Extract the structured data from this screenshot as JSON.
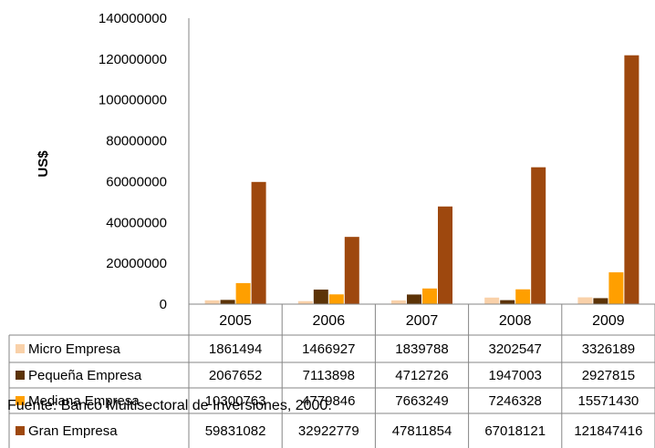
{
  "chart_data": {
    "type": "bar",
    "title": "",
    "xlabel": "",
    "ylabel": "US$",
    "ylim": [
      0,
      140000000
    ],
    "yticks": [
      0,
      20000000,
      40000000,
      60000000,
      80000000,
      100000000,
      120000000,
      140000000
    ],
    "ytick_labels": [
      "0",
      "20000000",
      "40000000",
      "60000000",
      "80000000",
      "100000000",
      "120000000",
      "140000000"
    ],
    "categories": [
      "2005",
      "2006",
      "2007",
      "2008",
      "2009"
    ],
    "series": [
      {
        "name": "Micro Empresa",
        "color": "#F9D1A9",
        "values": [
          1861494,
          1466927,
          1839788,
          3202547,
          3326189
        ],
        "labels": [
          "1861494",
          "1466927",
          "1839788",
          "3202547",
          "3326189"
        ]
      },
      {
        "name": "Pequeña Empresa",
        "color": "#5C3307",
        "values": [
          2067652,
          7113898,
          4712726,
          1947003,
          2927815
        ],
        "labels": [
          "2067652",
          "7113898",
          "4712726",
          "1947003",
          "2927815"
        ]
      },
      {
        "name": "Mediana Empresa",
        "color": "#FF9F00",
        "values": [
          10300763,
          4779846,
          7663249,
          7246328,
          15571430
        ],
        "labels": [
          "10300763",
          "4779846",
          "7663249",
          "7246328",
          "15571430"
        ]
      },
      {
        "name": "Gran Empresa",
        "color": "#9E480E",
        "values": [
          59831082,
          32922779,
          47811854,
          67018121,
          121847416
        ],
        "labels": [
          "59831082",
          "32922779",
          "47811854",
          "67018121",
          "121847416"
        ]
      }
    ],
    "legend": "table-below",
    "grid": false
  },
  "source": "Fuente: Banco Multisectoral de Inversiones, 2000."
}
